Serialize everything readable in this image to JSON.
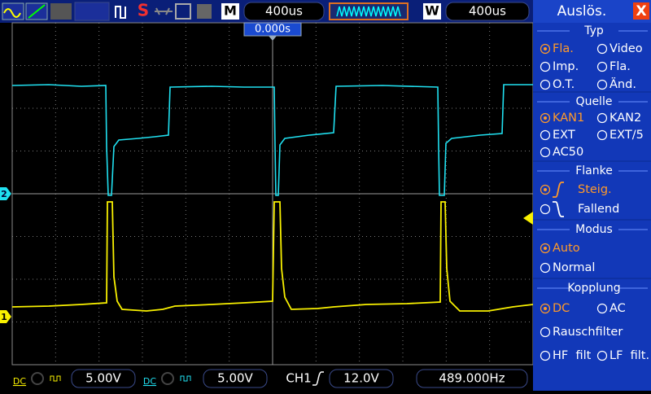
{
  "toolbar": {
    "status_letter": "S",
    "mode": "M",
    "timebase": "400us",
    "window_label": "W",
    "window_timebase": "400us",
    "trigger_position": "0.000s"
  },
  "markers": {
    "ch2": "2",
    "ch1": "1"
  },
  "menu": {
    "title": "Auslös.",
    "close": "X",
    "sections": [
      {
        "title": "Typ",
        "options": [
          {
            "label": "Fla.",
            "selected": true
          },
          {
            "label": "Video",
            "selected": false
          },
          {
            "label": "Imp.",
            "selected": false
          },
          {
            "label": "Fla.",
            "selected": false
          },
          {
            "label": "O.T.",
            "selected": false
          },
          {
            "label": "Änd.",
            "selected": false
          }
        ]
      },
      {
        "title": "Quelle",
        "options": [
          {
            "label": "KAN1",
            "selected": true
          },
          {
            "label": "KAN2",
            "selected": false
          },
          {
            "label": "EXT",
            "selected": false
          },
          {
            "label": "EXT/5",
            "selected": false
          },
          {
            "label": "AC50",
            "selected": false
          }
        ]
      },
      {
        "title": "Flanke",
        "options": [
          {
            "label": "Steig.",
            "selected": true
          },
          {
            "label": "Fallend",
            "selected": false
          }
        ]
      },
      {
        "title": "Modus",
        "options": [
          {
            "label": "Auto",
            "selected": true
          },
          {
            "label": "Normal",
            "selected": false
          }
        ]
      },
      {
        "title": "Kopplung",
        "options": [
          {
            "label": "DC",
            "selected": true
          },
          {
            "label": "AC",
            "selected": false
          },
          {
            "label": "Rauschfilter",
            "selected": false
          },
          {
            "label": "HF  filt",
            "selected": false
          },
          {
            "label": "LF  filt.",
            "selected": false
          }
        ]
      }
    ]
  },
  "status": {
    "ch1_coupling": "DC",
    "ch1_scale": "5.00V",
    "ch2_coupling": "DC",
    "ch2_scale": "5.00V",
    "trigger_source": "CH1",
    "trigger_level": "12.0V",
    "frequency": "489.000Hz"
  }
}
